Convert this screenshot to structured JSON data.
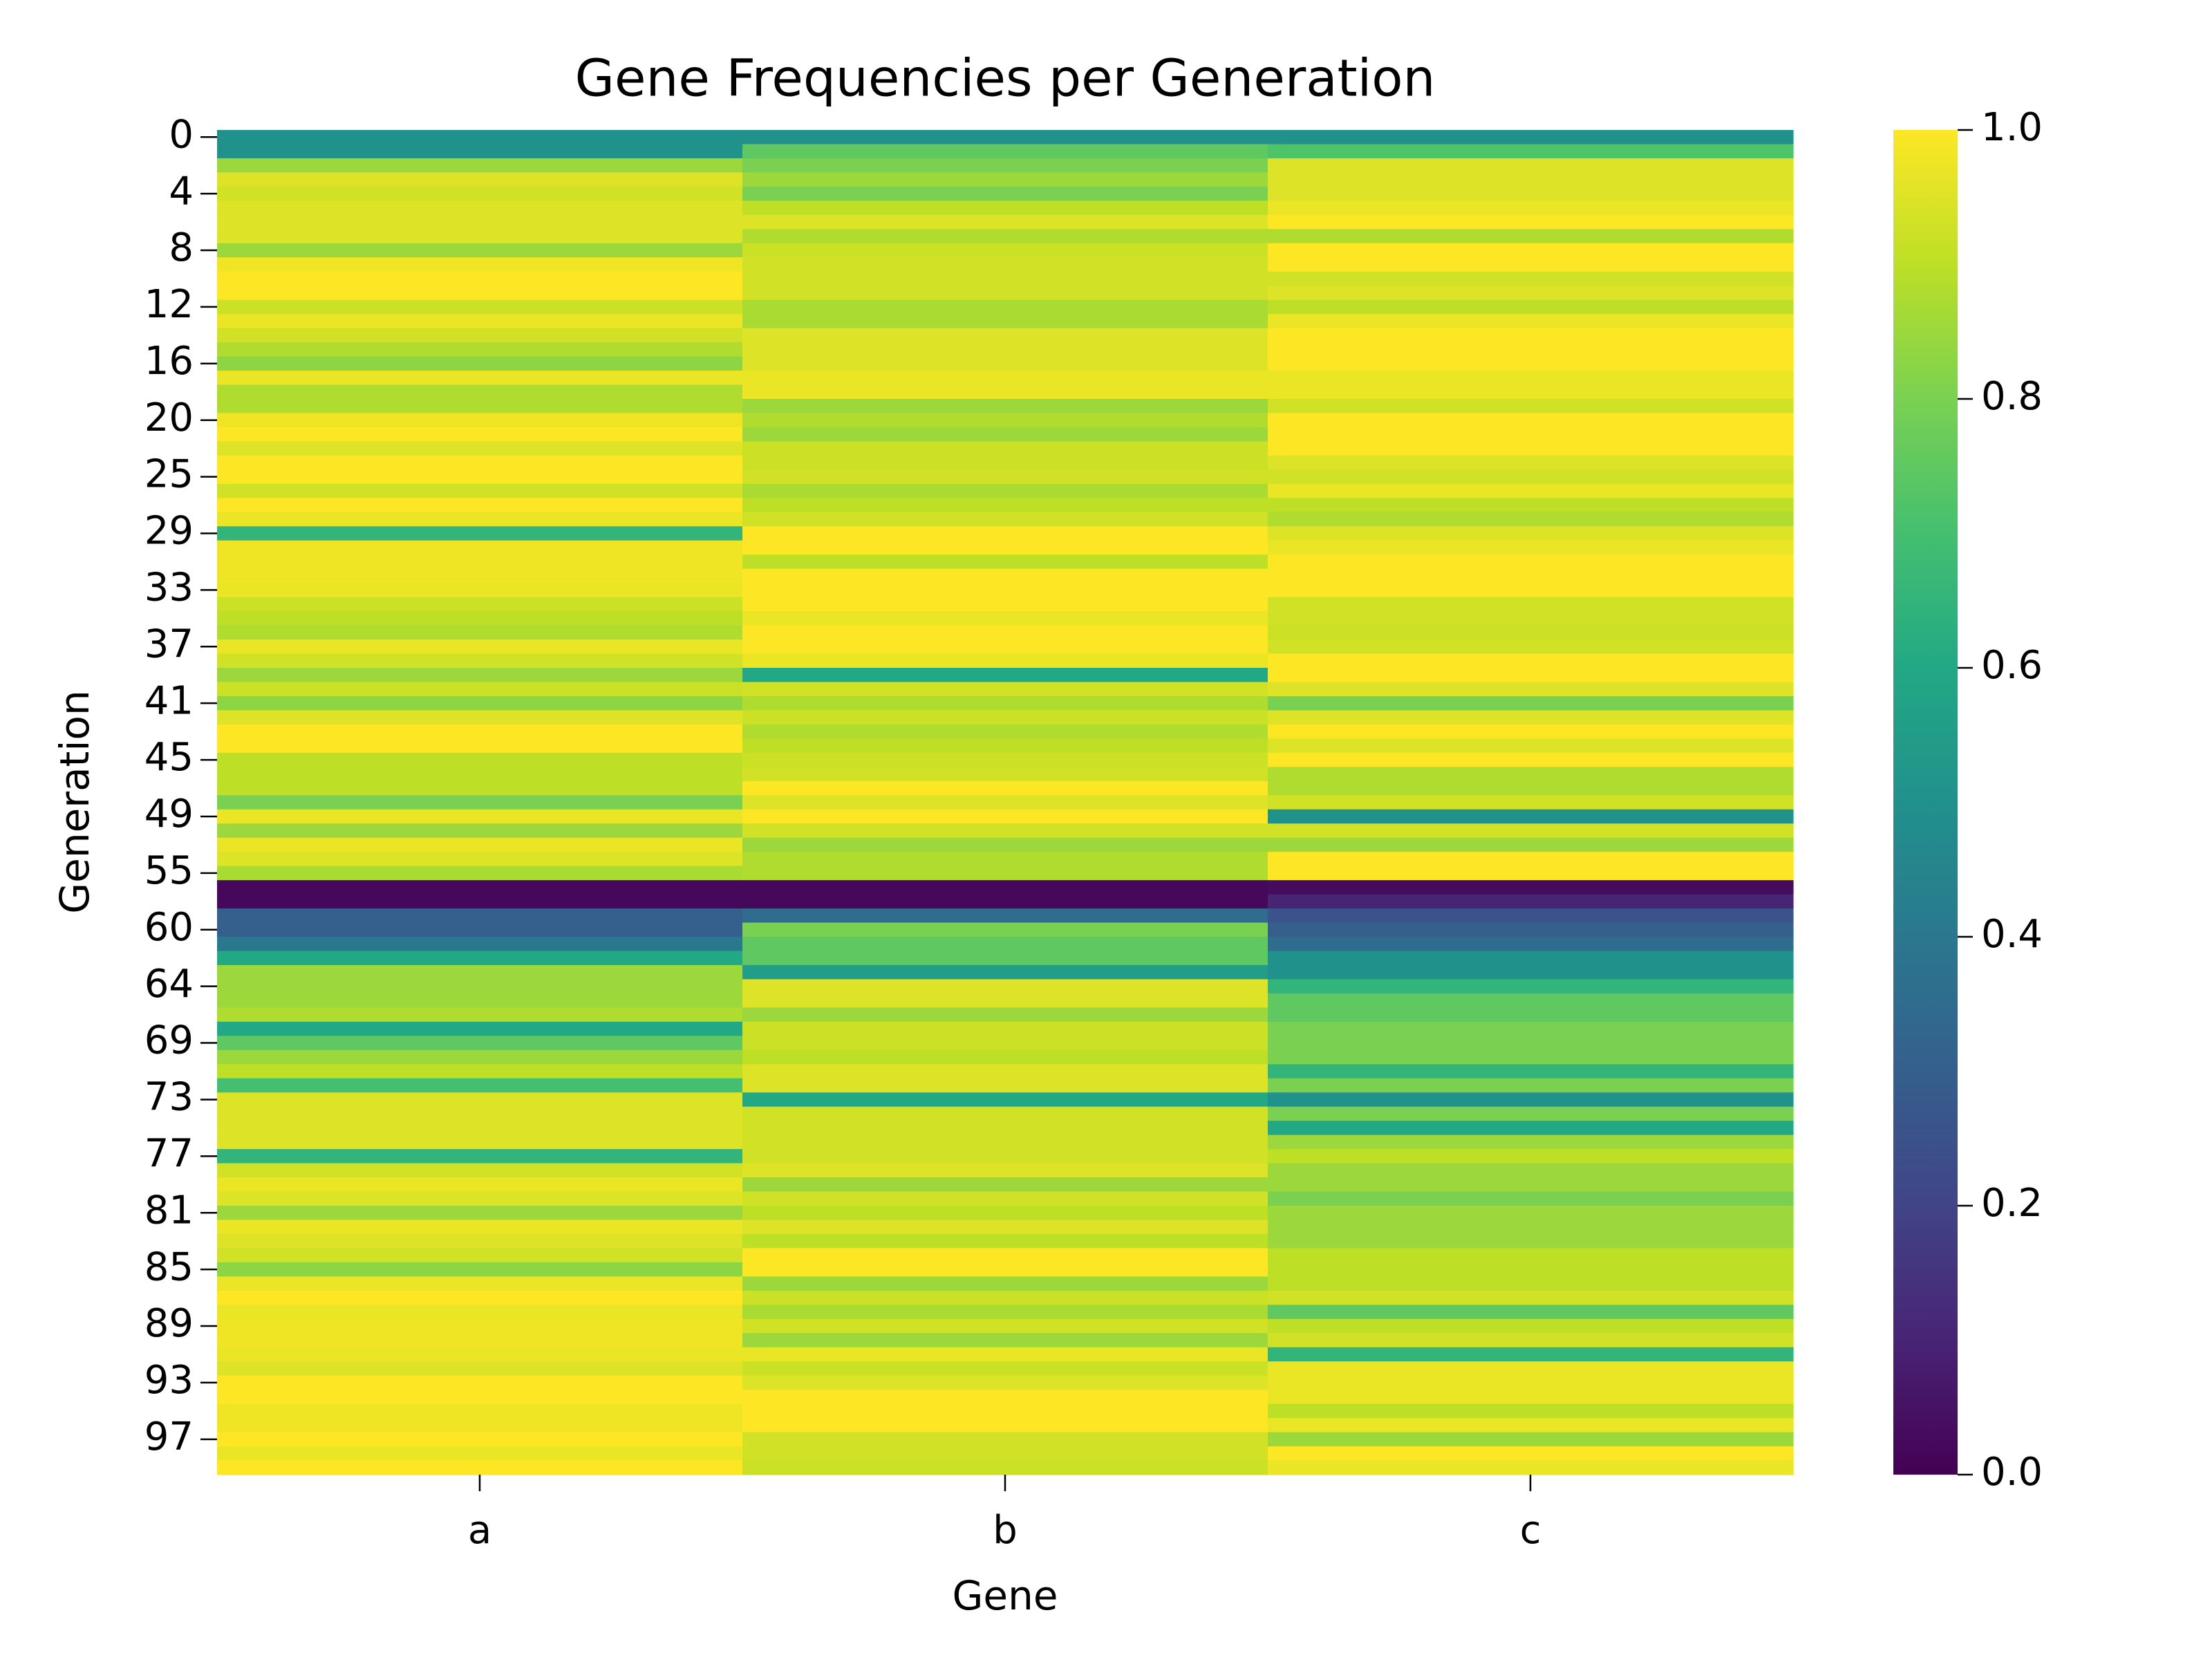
{
  "chart_data": {
    "type": "heatmap",
    "title": "Gene Frequencies per Generation",
    "x_label": "Gene",
    "y_label": "Generation",
    "x_categories": [
      "a",
      "b",
      "c"
    ],
    "y_categories": [
      0,
      null,
      null,
      null,
      4,
      null,
      null,
      null,
      8,
      null,
      null,
      null,
      12,
      null,
      null,
      null,
      16,
      null,
      null,
      null,
      20,
      null,
      null,
      null,
      25,
      null,
      null,
      null,
      29,
      null,
      null,
      null,
      33,
      null,
      null,
      null,
      37,
      null,
      null,
      null,
      41,
      null,
      null,
      null,
      45,
      null,
      null,
      null,
      49,
      null,
      null,
      null,
      55,
      null,
      null,
      null,
      60,
      null,
      null,
      null,
      64,
      null,
      null,
      null,
      69,
      null,
      null,
      null,
      73,
      null,
      null,
      null,
      77,
      null,
      null,
      null,
      81,
      null,
      null,
      null,
      85,
      null,
      null,
      null,
      89,
      null,
      null,
      null,
      93,
      null,
      null,
      null,
      97,
      null,
      null
    ],
    "values": [
      [
        0.5,
        0.5,
        0.5
      ],
      [
        0.5,
        0.75,
        0.72
      ],
      [
        0.85,
        0.8,
        0.95
      ],
      [
        0.95,
        0.85,
        0.95
      ],
      [
        0.93,
        0.8,
        0.95
      ],
      [
        0.95,
        0.9,
        0.97
      ],
      [
        0.95,
        0.95,
        1.0
      ],
      [
        0.95,
        0.88,
        0.88
      ],
      [
        0.85,
        0.92,
        1.0
      ],
      [
        0.98,
        0.93,
        1.0
      ],
      [
        1.0,
        0.93,
        0.93
      ],
      [
        1.0,
        0.93,
        0.95
      ],
      [
        0.92,
        0.87,
        0.9
      ],
      [
        0.97,
        0.87,
        0.97
      ],
      [
        0.93,
        0.95,
        1.0
      ],
      [
        0.88,
        0.95,
        1.0
      ],
      [
        0.83,
        0.95,
        1.0
      ],
      [
        0.97,
        0.97,
        0.97
      ],
      [
        0.88,
        0.97,
        0.97
      ],
      [
        0.88,
        0.85,
        0.93
      ],
      [
        0.98,
        0.88,
        1.0
      ],
      [
        1.0,
        0.85,
        1.0
      ],
      [
        0.95,
        0.92,
        1.0
      ],
      [
        1.0,
        0.92,
        0.95
      ],
      [
        1.0,
        0.93,
        0.93
      ],
      [
        0.93,
        0.87,
        0.97
      ],
      [
        1.0,
        0.9,
        0.9
      ],
      [
        0.97,
        0.93,
        0.88
      ],
      [
        0.65,
        1.0,
        0.95
      ],
      [
        0.98,
        1.0,
        0.97
      ],
      [
        0.98,
        0.9,
        1.0
      ],
      [
        0.98,
        1.0,
        1.0
      ],
      [
        0.97,
        1.0,
        1.0
      ],
      [
        0.92,
        1.0,
        0.93
      ],
      [
        0.9,
        0.97,
        0.93
      ],
      [
        0.88,
        1.0,
        0.92
      ],
      [
        0.97,
        1.0,
        0.93
      ],
      [
        0.93,
        0.97,
        1.0
      ],
      [
        0.85,
        0.6,
        1.0
      ],
      [
        0.92,
        0.93,
        0.95
      ],
      [
        0.83,
        0.88,
        0.8
      ],
      [
        0.95,
        0.92,
        0.95
      ],
      [
        1.0,
        0.88,
        1.0
      ],
      [
        1.0,
        0.9,
        0.95
      ],
      [
        0.9,
        0.92,
        1.0
      ],
      [
        0.9,
        0.93,
        0.88
      ],
      [
        0.9,
        1.0,
        0.88
      ],
      [
        0.8,
        0.95,
        0.93
      ],
      [
        0.97,
        1.0,
        0.5
      ],
      [
        0.85,
        0.93,
        0.93
      ],
      [
        0.97,
        0.85,
        0.85
      ],
      [
        0.95,
        0.88,
        1.0
      ],
      [
        0.87,
        0.88,
        1.0
      ],
      [
        0.02,
        0.02,
        0.03
      ],
      [
        0.02,
        0.02,
        0.1
      ],
      [
        0.3,
        0.35,
        0.25
      ],
      [
        0.3,
        0.8,
        0.3
      ],
      [
        0.4,
        0.75,
        0.35
      ],
      [
        0.6,
        0.75,
        0.5
      ],
      [
        0.85,
        0.55,
        0.5
      ],
      [
        0.85,
        0.95,
        0.65
      ],
      [
        0.85,
        0.95,
        0.75
      ],
      [
        0.88,
        0.85,
        0.75
      ],
      [
        0.6,
        0.92,
        0.8
      ],
      [
        0.75,
        0.92,
        0.8
      ],
      [
        0.85,
        0.9,
        0.8
      ],
      [
        0.9,
        0.95,
        0.65
      ],
      [
        0.7,
        0.95,
        0.8
      ],
      [
        0.95,
        0.6,
        0.5
      ],
      [
        0.95,
        0.93,
        0.8
      ],
      [
        0.95,
        0.93,
        0.6
      ],
      [
        0.95,
        0.93,
        0.85
      ],
      [
        0.65,
        0.93,
        0.9
      ],
      [
        0.93,
        0.95,
        0.85
      ],
      [
        0.97,
        0.85,
        0.85
      ],
      [
        0.95,
        0.93,
        0.8
      ],
      [
        0.85,
        0.9,
        0.85
      ],
      [
        0.97,
        0.95,
        0.85
      ],
      [
        0.95,
        0.9,
        0.85
      ],
      [
        0.93,
        1.0,
        0.9
      ],
      [
        0.83,
        1.0,
        0.9
      ],
      [
        0.97,
        0.85,
        0.9
      ],
      [
        1.0,
        0.92,
        0.93
      ],
      [
        0.97,
        0.87,
        0.75
      ],
      [
        0.98,
        0.93,
        0.9
      ],
      [
        0.98,
        0.85,
        0.93
      ],
      [
        0.97,
        0.97,
        0.65
      ],
      [
        0.95,
        0.92,
        0.97
      ],
      [
        1.0,
        0.95,
        0.97
      ],
      [
        1.0,
        1.0,
        0.97
      ],
      [
        0.98,
        1.0,
        0.9
      ],
      [
        0.98,
        1.0,
        0.97
      ],
      [
        1.0,
        0.93,
        0.85
      ],
      [
        0.97,
        0.93,
        1.0
      ],
      [
        1.0,
        0.92,
        0.97
      ]
    ],
    "colormap": "viridis",
    "clim": [
      0,
      1
    ],
    "cticks": [
      {
        "value": 0,
        "label": "0.0"
      },
      0.2,
      0.4,
      0.6,
      0.8,
      {
        "value": 1,
        "label": "1.0"
      }
    ]
  }
}
